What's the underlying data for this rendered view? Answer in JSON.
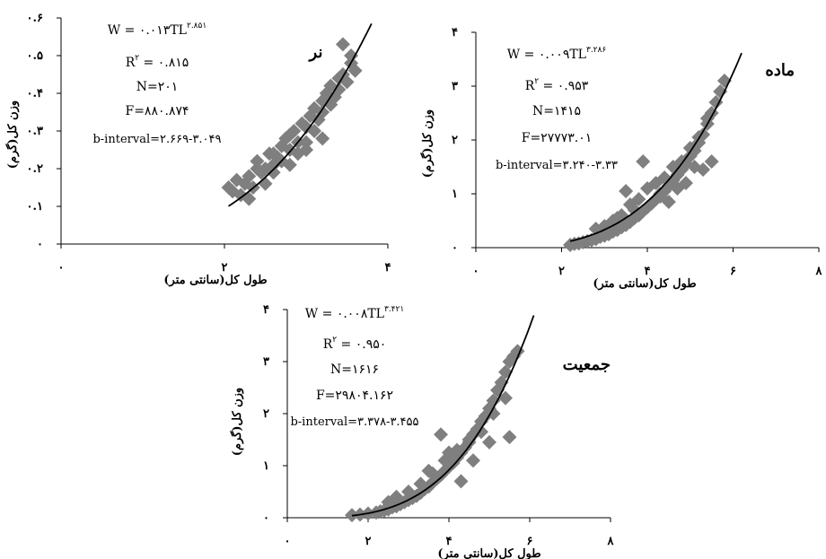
{
  "colors": {
    "points": "#7f7f7f",
    "curve": "#000000",
    "axes": "#000000"
  },
  "chart_data": [
    {
      "type": "scatter",
      "title": "نر",
      "xlabel": "طول کل(سانتی متر)",
      "ylabel": "وزن کل(گرم)",
      "xlim": [
        0,
        4
      ],
      "ylim": [
        0,
        0.6
      ],
      "xticks": [
        "۰",
        "۲",
        "۴"
      ],
      "yticks": [
        "۰",
        "۰.۱",
        "۰.۲",
        "۰.۳",
        "۰.۴",
        "۰.۵",
        "۰.۶"
      ],
      "trend": {
        "model": "power",
        "a": 0.013,
        "b": 2.851
      },
      "annotations": {
        "equation_main": "W = ۰.۰۱۳TL",
        "equation_exp": "۲.۸۵۱",
        "r2_main": "R",
        "r2_exp": "۲",
        "r2_value": " = ۰.۸۱۵",
        "n": "N=۲۰۱",
        "f": "F=۸۸۰.۸۷۴",
        "b_interval": "b-interval=۲.۶۶۹-۳.۰۴۹"
      },
      "series": [
        {
          "x": [
            2.05,
            2.1,
            2.15,
            2.2,
            2.25,
            2.3,
            2.35,
            2.4,
            2.45,
            2.5,
            2.55,
            2.6,
            2.65,
            2.7,
            2.75,
            2.8,
            2.85,
            2.9,
            2.95,
            3.0,
            3.05,
            3.1,
            3.15,
            3.2,
            3.25,
            3.3,
            3.35,
            3.4,
            3.45,
            3.5,
            3.55,
            3.6,
            2.3,
            2.5,
            2.6,
            2.7,
            2.8,
            2.9,
            3.0,
            3.1,
            3.2,
            3.3,
            3.4,
            2.4,
            2.6,
            2.8,
            3.0,
            3.2,
            3.45,
            3.55
          ],
          "y": [
            0.15,
            0.14,
            0.17,
            0.13,
            0.16,
            0.18,
            0.15,
            0.2,
            0.19,
            0.2,
            0.24,
            0.21,
            0.23,
            0.26,
            0.28,
            0.25,
            0.3,
            0.27,
            0.32,
            0.31,
            0.34,
            0.36,
            0.33,
            0.38,
            0.4,
            0.42,
            0.39,
            0.44,
            0.45,
            0.43,
            0.48,
            0.46,
            0.12,
            0.16,
            0.19,
            0.22,
            0.29,
            0.24,
            0.27,
            0.3,
            0.35,
            0.37,
            0.41,
            0.22,
            0.24,
            0.21,
            0.25,
            0.28,
            0.53,
            0.5
          ]
        }
      ]
    },
    {
      "type": "scatter",
      "title": "ماده",
      "xlabel": "طول کل(سانتی متر)",
      "ylabel": "وزن کل(گرم)",
      "xlim": [
        0,
        8
      ],
      "ylim": [
        0,
        4
      ],
      "xticks": [
        "۰",
        "۲",
        "۴",
        "۶",
        "۸"
      ],
      "yticks": [
        "۰",
        "۱",
        "۲",
        "۳",
        "۴"
      ],
      "trend": {
        "model": "power",
        "a": 0.009,
        "b": 3.286
      },
      "annotations": {
        "equation_main": "W = ۰.۰۰۹TL",
        "equation_exp": "۳.۲۸۶",
        "r2_main": "R",
        "r2_exp": "۲",
        "r2_value": " = ۰.۹۵۳",
        "n": "N=۱۴۱۵",
        "f": "F=۲۷۷۷۳.۰۱",
        "b_interval": "b-interval=۳.۲۴۰-۳.۳۳"
      },
      "series": [
        {
          "x": [
            2.2,
            2.3,
            2.4,
            2.5,
            2.6,
            2.7,
            2.8,
            2.9,
            3.0,
            3.1,
            3.2,
            3.3,
            3.4,
            3.5,
            3.6,
            3.7,
            3.8,
            3.9,
            4.0,
            4.1,
            4.2,
            4.3,
            4.4,
            4.5,
            4.6,
            4.7,
            4.8,
            4.9,
            5.0,
            5.1,
            5.2,
            5.3,
            5.4,
            5.5,
            5.6,
            5.7,
            5.8,
            3.0,
            3.2,
            3.4,
            3.6,
            3.8,
            4.0,
            4.2,
            4.4,
            4.6,
            4.8,
            5.0,
            5.2,
            5.4,
            2.8,
            3.3,
            3.7,
            4.3,
            4.7,
            5.1,
            5.5,
            3.5,
            3.9,
            4.5,
            4.9,
            5.3
          ],
          "y": [
            0.05,
            0.07,
            0.08,
            0.1,
            0.12,
            0.14,
            0.16,
            0.2,
            0.22,
            0.25,
            0.3,
            0.33,
            0.38,
            0.42,
            0.48,
            0.55,
            0.6,
            0.68,
            0.75,
            0.82,
            0.9,
            1.0,
            1.05,
            1.15,
            1.25,
            1.35,
            1.45,
            1.55,
            1.7,
            1.8,
            1.95,
            2.1,
            2.3,
            2.5,
            2.7,
            2.9,
            3.1,
            0.4,
            0.5,
            0.6,
            0.8,
            0.9,
            1.1,
            1.2,
            1.3,
            1.5,
            1.6,
            1.85,
            2.05,
            2.4,
            0.35,
            0.55,
            0.7,
            0.95,
            1.1,
            1.5,
            1.6,
            1.05,
            1.6,
            0.85,
            1.2,
            1.45
          ]
        }
      ]
    },
    {
      "type": "scatter",
      "title": "جمعیت",
      "xlabel": "طول کل(سانتی متر)",
      "ylabel": "وزن کل(گرم)",
      "xlim": [
        0,
        8
      ],
      "ylim": [
        0,
        4
      ],
      "xticks": [
        "۰",
        "۲",
        "۴",
        "۶",
        "۸"
      ],
      "yticks": [
        "۰",
        "۱",
        "۲",
        "۳",
        "۴"
      ],
      "trend": {
        "model": "power",
        "a": 0.008,
        "b": 3.421
      },
      "annotations": {
        "equation_main": "W = ۰.۰۰۸TL",
        "equation_exp": "۳.۴۲۱",
        "r2_main": "R",
        "r2_exp": "۲",
        "r2_value": " = ۰.۹۵۰",
        "n": "N=۱۶۱۶",
        "f": "F=۲۹۸۰۴.۱۶۲",
        "b_interval": "b-interval=۳.۳۷۸-۳.۴۵۵"
      },
      "series": [
        {
          "x": [
            1.6,
            1.8,
            2.0,
            2.2,
            2.3,
            2.4,
            2.5,
            2.6,
            2.7,
            2.8,
            2.9,
            3.0,
            3.1,
            3.2,
            3.3,
            3.4,
            3.5,
            3.6,
            3.7,
            3.8,
            3.9,
            4.0,
            4.1,
            4.2,
            4.3,
            4.4,
            4.5,
            4.6,
            4.7,
            4.8,
            4.9,
            5.0,
            5.1,
            5.2,
            5.3,
            5.4,
            5.5,
            5.6,
            5.7,
            2.7,
            3.0,
            3.3,
            3.6,
            3.9,
            4.2,
            4.5,
            4.8,
            5.1,
            5.4,
            2.5,
            3.5,
            4.0,
            4.6,
            5.0,
            5.5,
            3.8,
            4.3
          ],
          "y": [
            0.05,
            0.06,
            0.08,
            0.1,
            0.12,
            0.14,
            0.16,
            0.2,
            0.22,
            0.26,
            0.3,
            0.34,
            0.38,
            0.42,
            0.48,
            0.55,
            0.6,
            0.68,
            0.75,
            0.82,
            0.9,
            0.98,
            1.05,
            1.15,
            1.25,
            1.35,
            1.45,
            1.6,
            1.7,
            1.85,
            1.95,
            2.1,
            2.25,
            2.45,
            2.6,
            2.8,
            3.0,
            3.1,
            3.2,
            0.4,
            0.5,
            0.65,
            0.85,
            1.1,
            1.3,
            1.5,
            1.65,
            2.0,
            2.3,
            0.3,
            0.9,
            1.25,
            1.1,
            1.45,
            1.55,
            1.6,
            0.7
          ]
        }
      ]
    }
  ]
}
